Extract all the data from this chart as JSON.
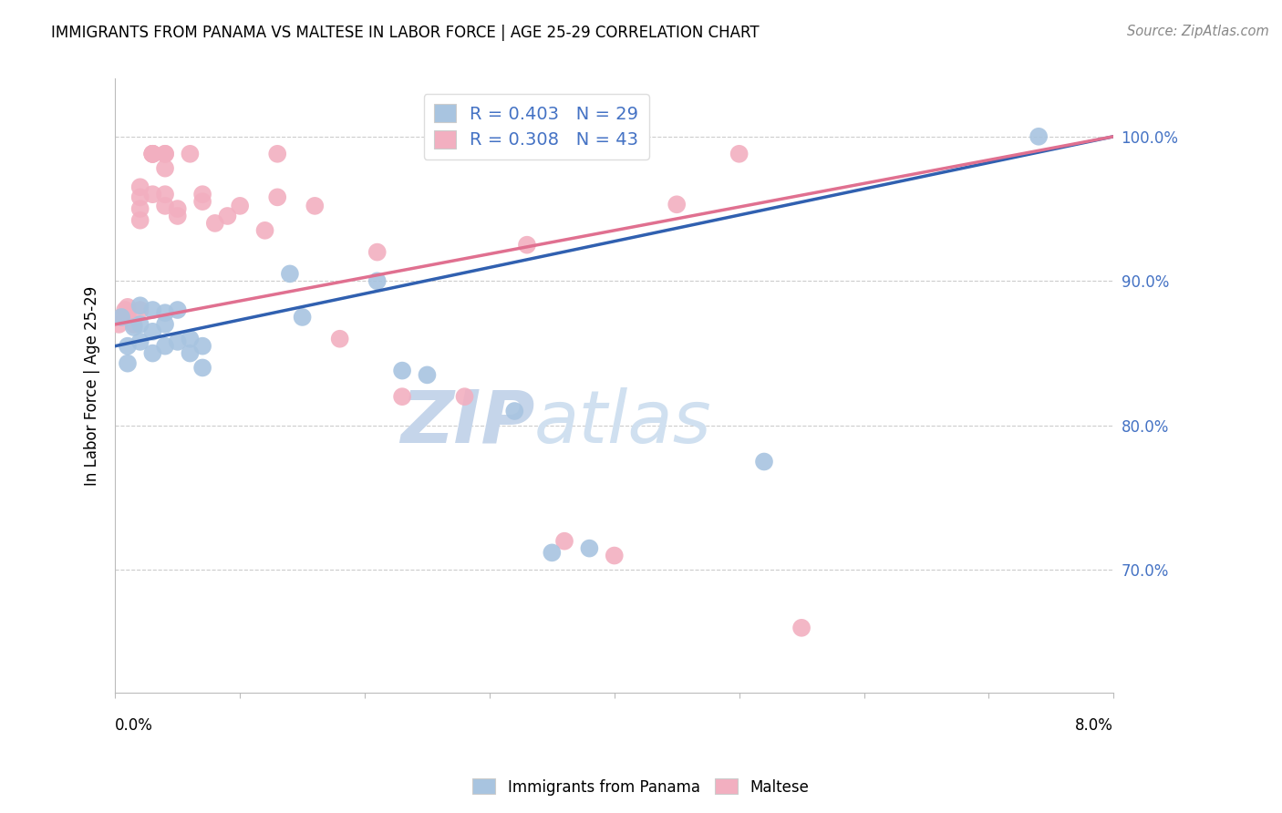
{
  "title": "IMMIGRANTS FROM PANAMA VS MALTESE IN LABOR FORCE | AGE 25-29 CORRELATION CHART",
  "source_text": "Source: ZipAtlas.com",
  "ylabel": "In Labor Force | Age 25-29",
  "xlim": [
    0.0,
    0.08
  ],
  "ylim": [
    0.615,
    1.04
  ],
  "y_ticks": [
    0.7,
    0.8,
    0.9,
    1.0
  ],
  "panama_R": 0.403,
  "panama_N": 29,
  "maltese_R": 0.308,
  "maltese_N": 43,
  "panama_color": "#a8c4e0",
  "maltese_color": "#f2afc0",
  "panama_line_color": "#3060b0",
  "maltese_line_color": "#e07090",
  "legend_text_color": "#4472c4",
  "watermark_zip_color": "#c8d8f0",
  "watermark_atlas_color": "#b8cce4",
  "panama_x": [
    0.0005,
    0.001,
    0.001,
    0.0015,
    0.002,
    0.002,
    0.002,
    0.003,
    0.003,
    0.003,
    0.004,
    0.004,
    0.004,
    0.005,
    0.005,
    0.006,
    0.006,
    0.007,
    0.007,
    0.014,
    0.015,
    0.021,
    0.023,
    0.025,
    0.032,
    0.035,
    0.038,
    0.052,
    0.074
  ],
  "panama_y": [
    0.875,
    0.843,
    0.855,
    0.868,
    0.87,
    0.858,
    0.883,
    0.865,
    0.85,
    0.88,
    0.855,
    0.87,
    0.878,
    0.858,
    0.88,
    0.85,
    0.86,
    0.84,
    0.855,
    0.905,
    0.875,
    0.9,
    0.838,
    0.835,
    0.81,
    0.712,
    0.715,
    0.775,
    1.0
  ],
  "maltese_x": [
    0.0003,
    0.0005,
    0.0008,
    0.001,
    0.001,
    0.0015,
    0.002,
    0.002,
    0.002,
    0.002,
    0.002,
    0.003,
    0.003,
    0.003,
    0.003,
    0.003,
    0.004,
    0.004,
    0.004,
    0.004,
    0.004,
    0.005,
    0.005,
    0.006,
    0.007,
    0.007,
    0.008,
    0.009,
    0.01,
    0.012,
    0.013,
    0.013,
    0.016,
    0.018,
    0.021,
    0.023,
    0.028,
    0.033,
    0.036,
    0.04,
    0.045,
    0.05,
    0.055
  ],
  "maltese_y": [
    0.87,
    0.875,
    0.88,
    0.878,
    0.882,
    0.87,
    0.965,
    0.95,
    0.942,
    0.958,
    0.88,
    0.988,
    0.988,
    0.988,
    0.988,
    0.96,
    0.988,
    0.978,
    0.96,
    0.952,
    0.988,
    0.95,
    0.945,
    0.988,
    0.96,
    0.955,
    0.94,
    0.945,
    0.952,
    0.935,
    0.958,
    0.988,
    0.952,
    0.86,
    0.92,
    0.82,
    0.82,
    0.925,
    0.72,
    0.71,
    0.953,
    0.988,
    0.66
  ],
  "panama_line_x0": 0.0,
  "panama_line_y0": 0.855,
  "panama_line_x1": 0.08,
  "panama_line_y1": 1.0,
  "maltese_line_x0": 0.0,
  "maltese_line_y0": 0.87,
  "maltese_line_x1": 0.08,
  "maltese_line_y1": 1.0
}
